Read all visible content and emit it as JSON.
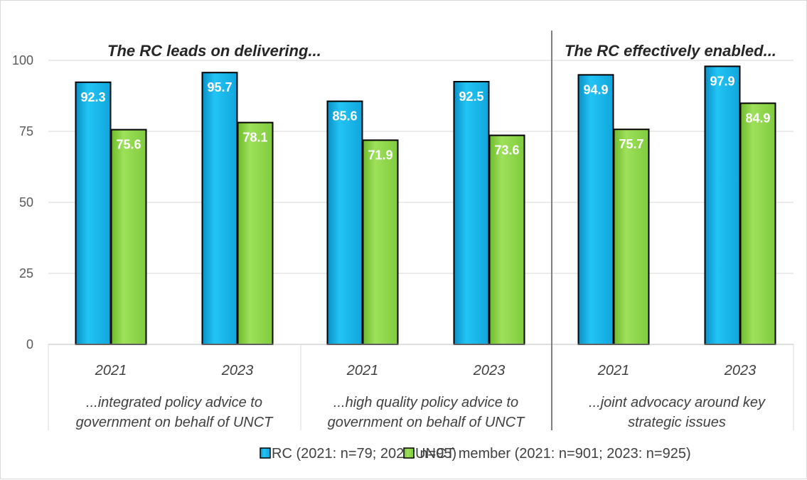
{
  "chart_data": {
    "type": "bar",
    "y_ticks": [
      "0",
      "25",
      "50",
      "75",
      "100"
    ],
    "ylim": [
      0,
      110
    ],
    "grid": "horizontal",
    "legend_position": "bottom",
    "section_titles": [
      "The RC leads on delivering...",
      "The RC effectively enabled..."
    ],
    "groups": [
      {
        "label_lines": [
          "...integrated policy advice to",
          "government on behalf of UNCT"
        ],
        "years": [
          "2021",
          "2023"
        ]
      },
      {
        "label_lines": [
          "...high quality policy advice to",
          "government on behalf of UNCT"
        ],
        "years": [
          "2021",
          "2023"
        ]
      },
      {
        "label_lines": [
          "...joint advocacy around key",
          "strategic issues"
        ],
        "years": [
          "2021",
          "2023"
        ]
      }
    ],
    "categories": [
      "2021",
      "2023",
      "2021",
      "2023",
      "2021",
      "2023"
    ],
    "series": [
      {
        "name": "RC (2021: n=79; 2023: n=95)",
        "color": "#1ab9ef",
        "values": [
          92.3,
          95.7,
          85.6,
          92.5,
          94.9,
          97.9
        ],
        "labels": [
          "92.3",
          "95.7",
          "85.6",
          "92.5",
          "94.9",
          "97.9"
        ]
      },
      {
        "name": "UNCT member (2021: n=901; 2023: n=925)",
        "color": "#8fd94b",
        "values": [
          75.6,
          78.1,
          71.9,
          73.6,
          75.7,
          84.9
        ],
        "labels": [
          "75.6",
          "78.1",
          "71.9",
          "73.6",
          "75.7",
          "84.9"
        ]
      }
    ]
  }
}
